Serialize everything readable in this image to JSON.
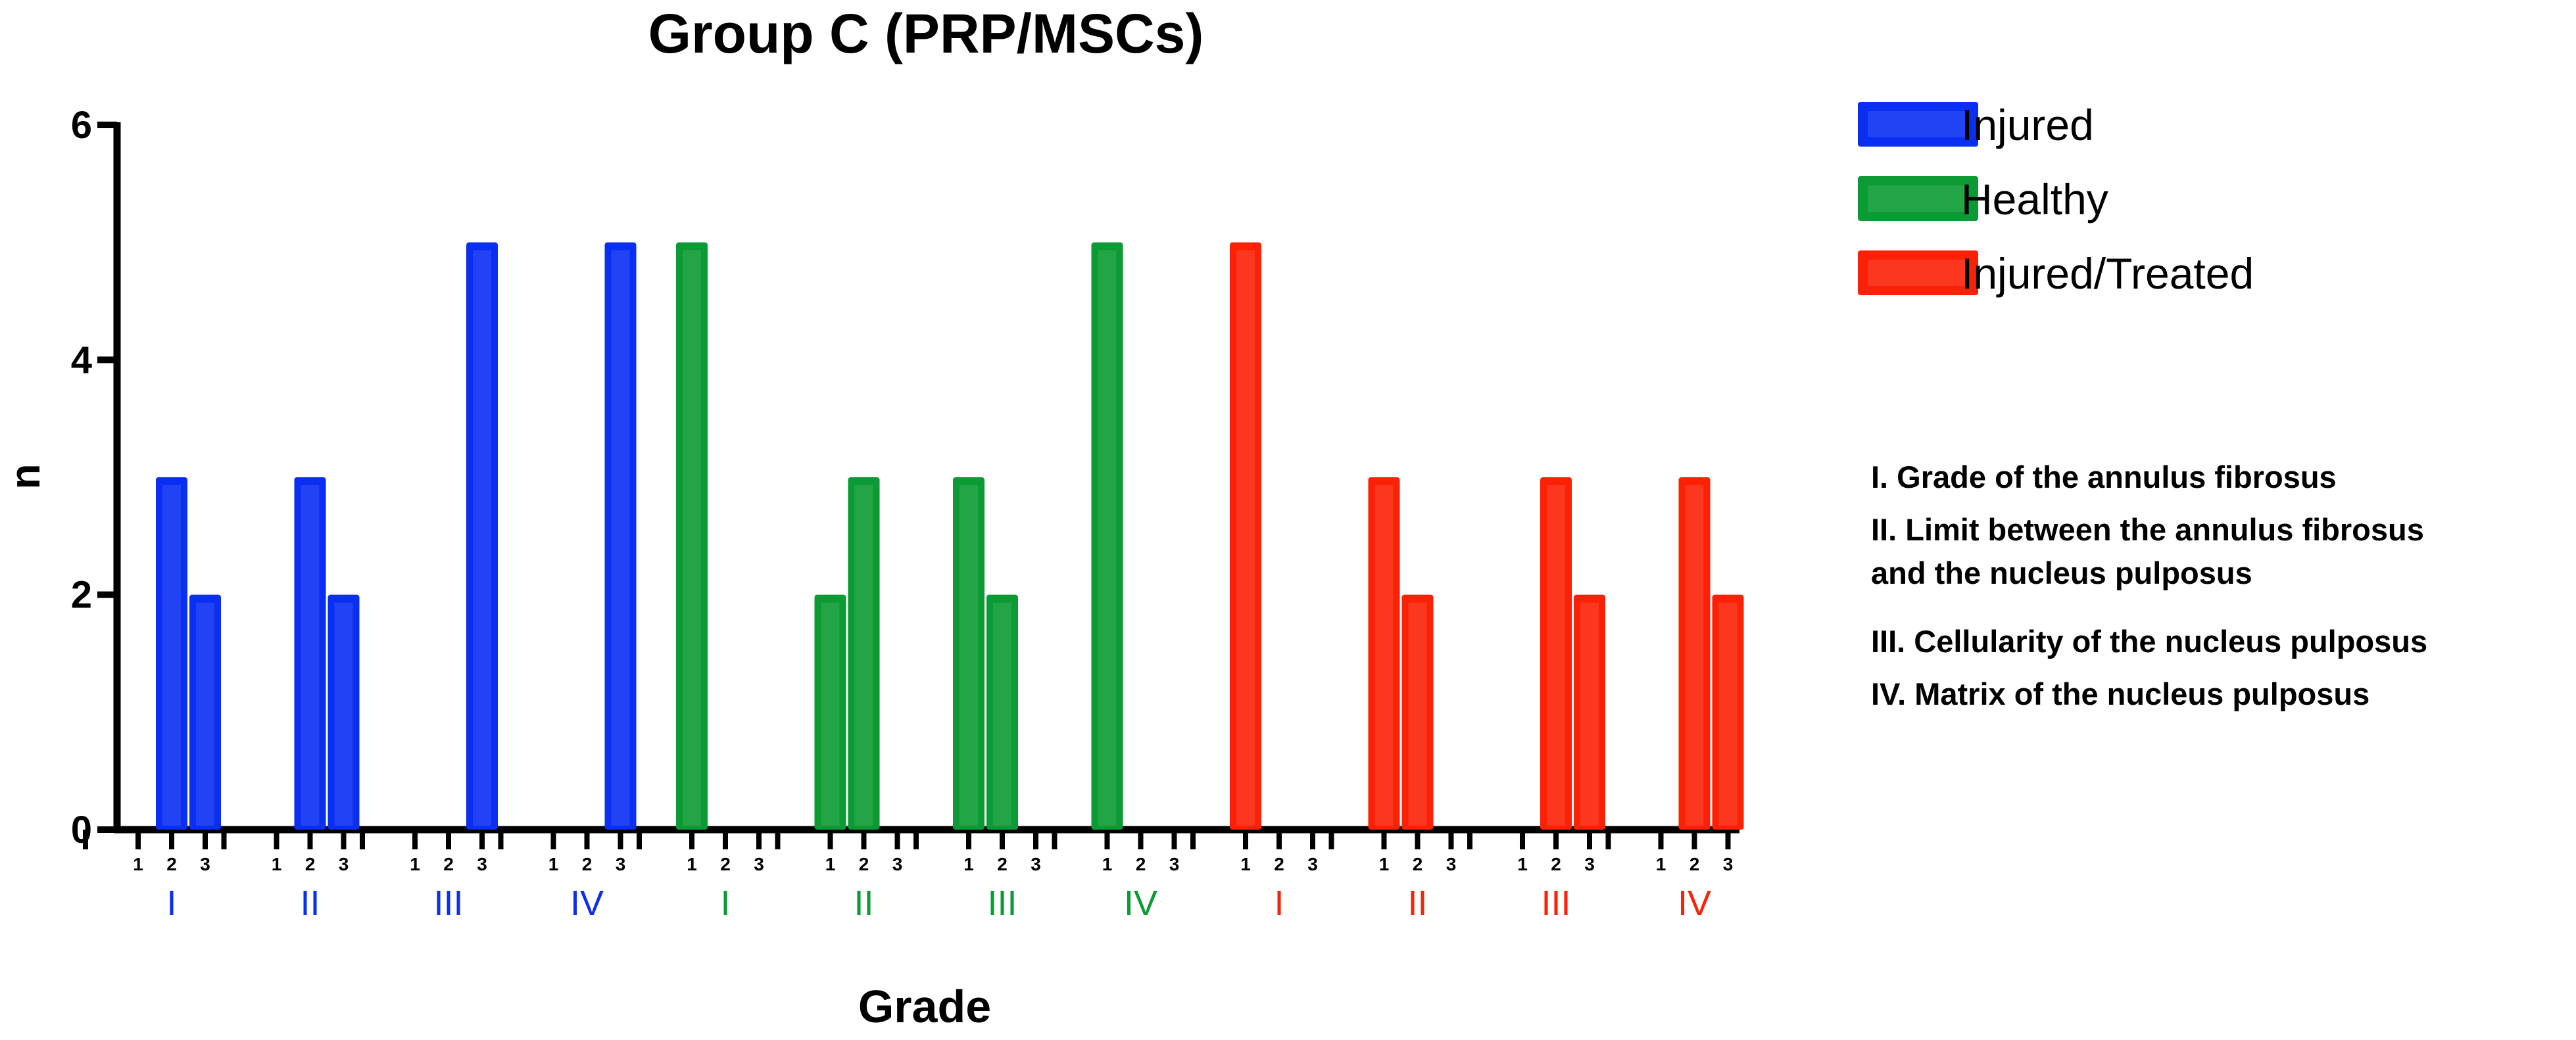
{
  "chart_data": {
    "type": "bar",
    "title": "Group C (PRP/MSCs)",
    "xlabel": "Grade",
    "ylabel": "n",
    "ylim": [
      0,
      6
    ],
    "yticks": [
      "0",
      "2",
      "4",
      "6"
    ],
    "grid": false,
    "legend_position": "top-right",
    "sub_categories": [
      "1",
      "2",
      "3"
    ],
    "groups": [
      {
        "label": "I",
        "series": "Injured",
        "values": [
          0,
          3,
          2
        ]
      },
      {
        "label": "II",
        "series": "Injured",
        "values": [
          0,
          3,
          2
        ]
      },
      {
        "label": "III",
        "series": "Injured",
        "values": [
          0,
          0,
          5
        ]
      },
      {
        "label": "IV",
        "series": "Injured",
        "values": [
          0,
          0,
          5
        ]
      },
      {
        "label": "I",
        "series": "Healthy",
        "values": [
          5,
          0,
          0
        ]
      },
      {
        "label": "II",
        "series": "Healthy",
        "values": [
          2,
          3,
          0
        ]
      },
      {
        "label": "III",
        "series": "Healthy",
        "values": [
          3,
          2,
          0
        ]
      },
      {
        "label": "IV",
        "series": "Healthy",
        "values": [
          5,
          0,
          0
        ]
      },
      {
        "label": "I",
        "series": "Injured/Treated",
        "values": [
          5,
          0,
          0
        ]
      },
      {
        "label": "II",
        "series": "Injured/Treated",
        "values": [
          3,
          2,
          0
        ]
      },
      {
        "label": "III",
        "series": "Injured/Treated",
        "values": [
          0,
          3,
          2
        ]
      },
      {
        "label": "IV",
        "series": "Injured/Treated",
        "values": [
          0,
          3,
          2
        ]
      }
    ],
    "series": [
      {
        "name": "Injured",
        "color": "#0a2ef2"
      },
      {
        "name": "Healthy",
        "color": "#0b9a33"
      },
      {
        "name": "Injured/Treated",
        "color": "#fb2106"
      }
    ],
    "annotations": [
      "I. Grade of the annulus fibrosus",
      "II. Limit between the annulus fibrosus",
      "and the nucleus pulposus",
      "III. Cellularity of the nucleus pulposus",
      "IV. Matrix of the nucleus pulposus"
    ]
  }
}
